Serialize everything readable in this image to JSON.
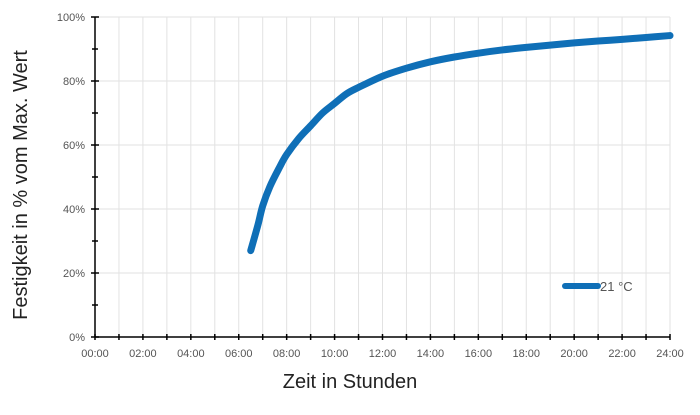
{
  "chart_data": {
    "type": "line",
    "title": "",
    "xlabel": "Zeit in Stunden",
    "ylabel": "Festigkeit in % vom Max. Wert",
    "x_tick_labels": [
      "00:00",
      "02:00",
      "04:00",
      "06:00",
      "08:00",
      "10:00",
      "12:00",
      "14:00",
      "16:00",
      "18:00",
      "20:00",
      "22:00",
      "24:00"
    ],
    "y_tick_labels": [
      "0%",
      "20%",
      "40%",
      "60%",
      "80%",
      "100%"
    ],
    "xlim": [
      0,
      24
    ],
    "ylim": [
      0,
      100
    ],
    "grid": true,
    "legend_position": "bottom-right",
    "series": [
      {
        "name": "21 °C",
        "color": "#0f6fb7",
        "x": [
          6.5,
          6.8,
          7.0,
          7.3,
          7.7,
          8.0,
          8.5,
          9.0,
          9.5,
          10.0,
          10.5,
          11.0,
          12.0,
          13.0,
          14.0,
          15.0,
          16.0,
          17.0,
          18.0,
          19.0,
          20.0,
          21.0,
          22.0,
          23.0,
          24.0
        ],
        "y": [
          27,
          35,
          41,
          47,
          53,
          57,
          62,
          66,
          70,
          73,
          76,
          78,
          81.5,
          84,
          86,
          87.5,
          88.7,
          89.7,
          90.5,
          91.2,
          91.9,
          92.5,
          93,
          93.6,
          94.2
        ]
      }
    ]
  }
}
